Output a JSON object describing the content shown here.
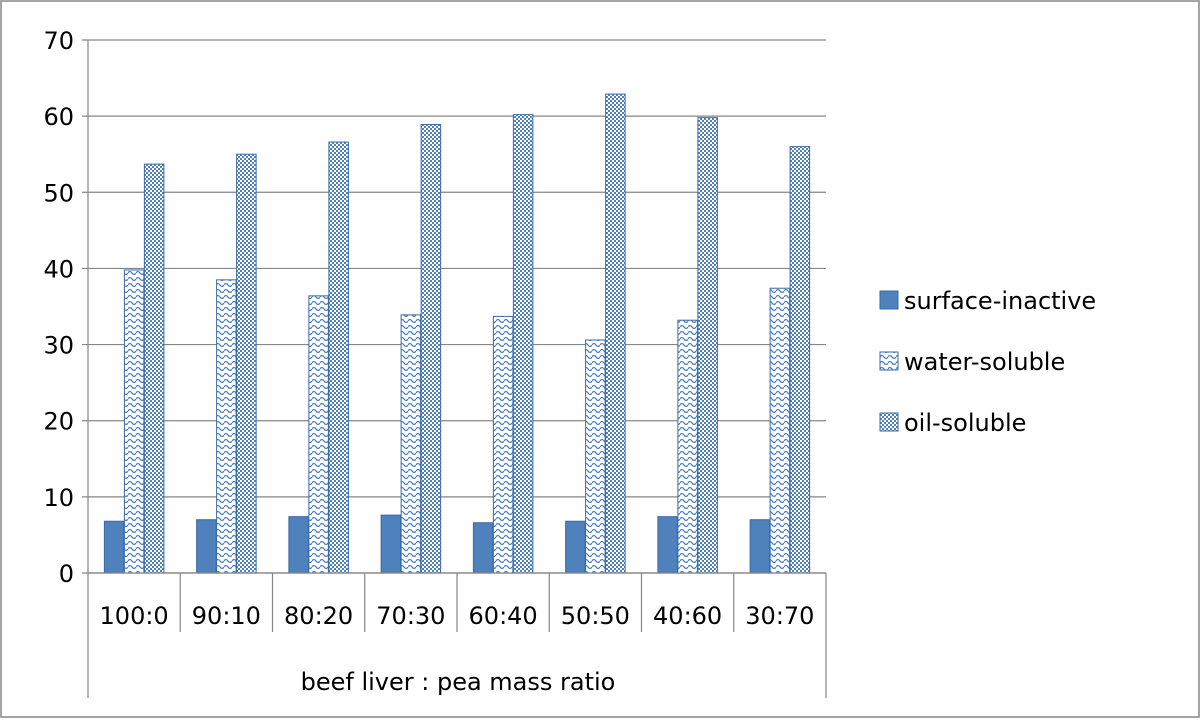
{
  "chart_data": {
    "type": "bar",
    "title": "",
    "ylabel": "",
    "xlabel": "beef liver : pea mass ratio",
    "categories": [
      "100:0",
      "90:10",
      "80:20",
      "70:30",
      "60:40",
      "50:50",
      "40:60",
      "30:70"
    ],
    "series": [
      {
        "name": "surface-inactive",
        "pattern": "solid",
        "values": [
          6.8,
          7.0,
          7.4,
          7.6,
          6.6,
          6.8,
          7.4,
          7.0
        ]
      },
      {
        "name": "water-soluble",
        "pattern": "wave",
        "values": [
          39.8,
          38.5,
          36.4,
          33.9,
          33.7,
          30.6,
          33.2,
          37.4
        ]
      },
      {
        "name": "oil-soluble",
        "pattern": "crosshatch",
        "values": [
          53.7,
          55.0,
          56.6,
          58.9,
          60.2,
          62.9,
          59.8,
          56.0
        ]
      }
    ],
    "ylim": [
      0,
      70
    ],
    "yticks": [
      0,
      10,
      20,
      30,
      40,
      50,
      60,
      70
    ],
    "grid": true,
    "legend_position": "right",
    "colors": {
      "bar": "#4F81BD",
      "bar_dark": "#3A6AA6",
      "grid": "#868686",
      "axis": "#868686"
    }
  }
}
